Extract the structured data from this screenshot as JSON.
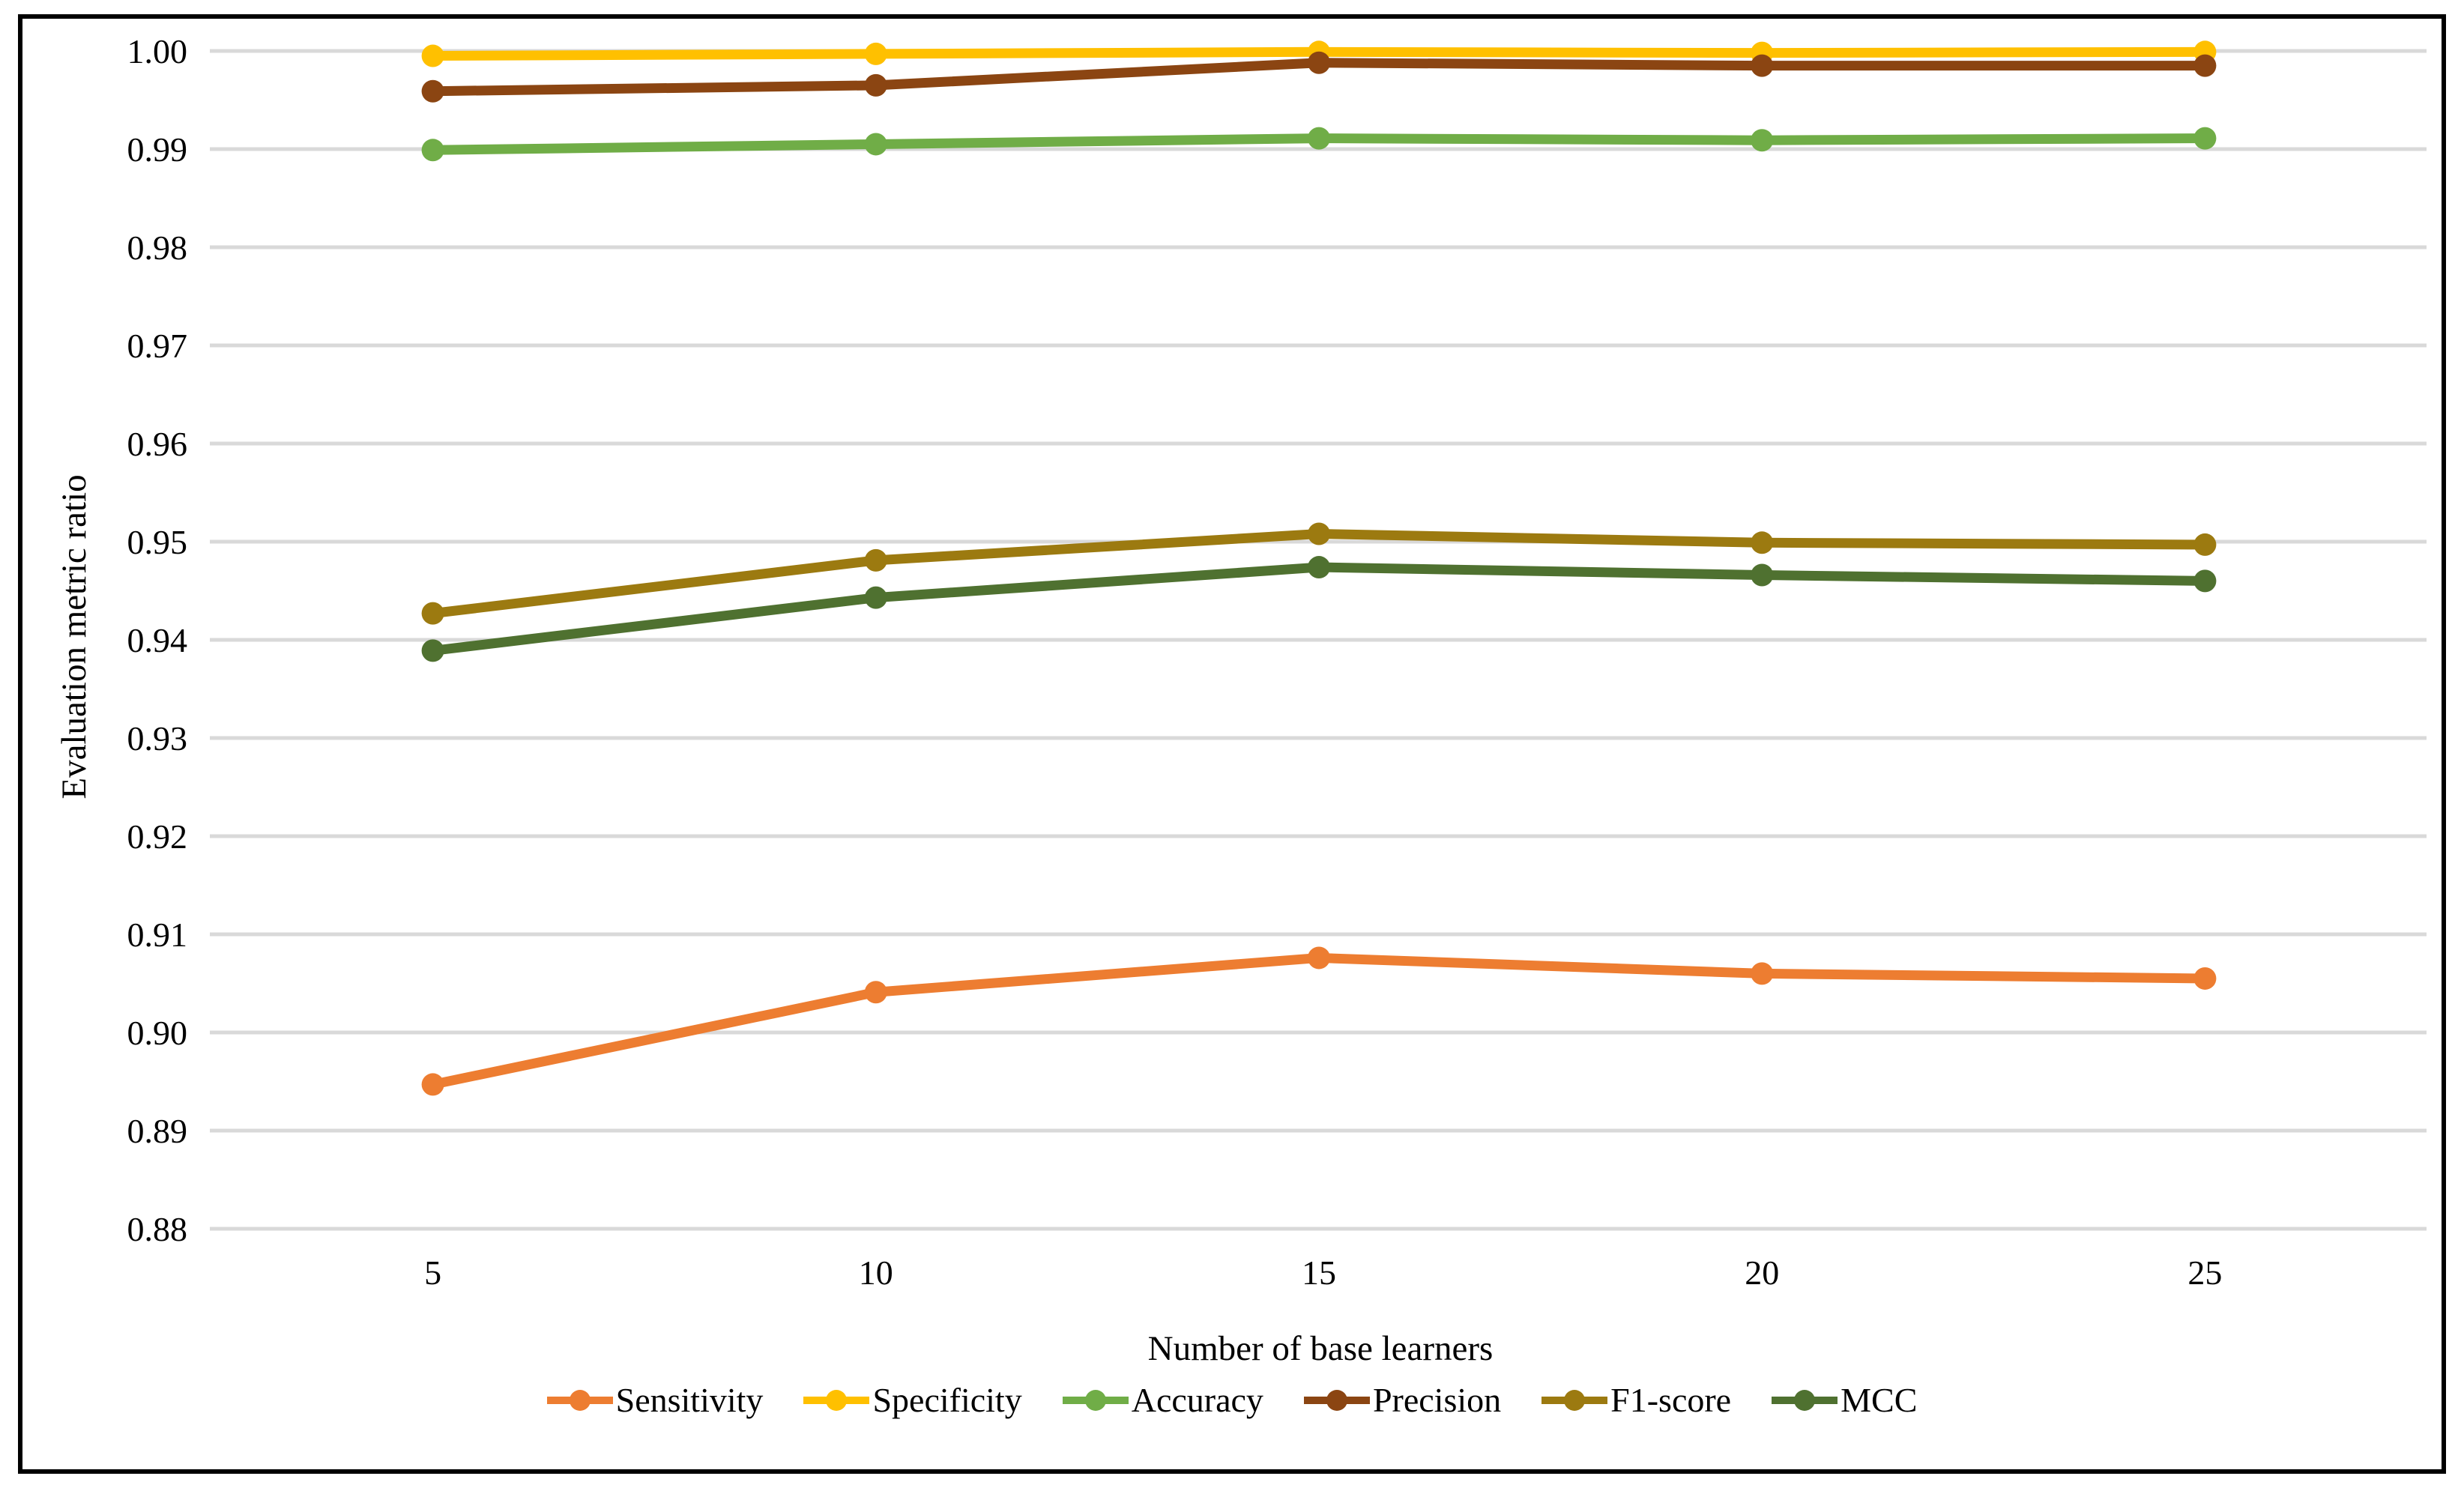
{
  "chart_data": {
    "type": "line",
    "title": "",
    "xlabel": "Number of base learners",
    "ylabel": "Evaluation metric ratio",
    "categories": [
      "5",
      "10",
      "15",
      "20",
      "25"
    ],
    "yticks": [
      "1.00",
      "0.99",
      "0.98",
      "0.97",
      "0.96",
      "0.95",
      "0.94",
      "0.93",
      "0.92",
      "0.91",
      "0.90",
      "0.89",
      "0.88"
    ],
    "ylim": [
      0.88,
      1.0
    ],
    "grid": true,
    "gridline_color": "#D9D9D9",
    "legend_position": "bottom",
    "marker_style": "circle",
    "series": [
      {
        "name": "Sensitivity",
        "color": "#ED7D31",
        "values": [
          0.8947,
          0.9041,
          0.9076,
          0.906,
          0.9055
        ]
      },
      {
        "name": "Specificity",
        "color": "#FFC000",
        "values": [
          0.9995,
          0.9997,
          0.9999,
          0.9998,
          0.9999
        ]
      },
      {
        "name": "Accuracy",
        "color": "#70AD47",
        "values": [
          0.9899,
          0.9905,
          0.9911,
          0.9909,
          0.9911
        ]
      },
      {
        "name": "Precision",
        "color": "#8B4512",
        "values": [
          0.9959,
          0.9965,
          0.9988,
          0.9985,
          0.9985
        ]
      },
      {
        "name": "F1-score",
        "color": "#9C7A10",
        "values": [
          0.9427,
          0.9481,
          0.9508,
          0.9499,
          0.9497
        ]
      },
      {
        "name": "MCC",
        "color": "#4F7130",
        "values": [
          0.9389,
          0.9443,
          0.9474,
          0.9466,
          0.946
        ]
      }
    ]
  }
}
